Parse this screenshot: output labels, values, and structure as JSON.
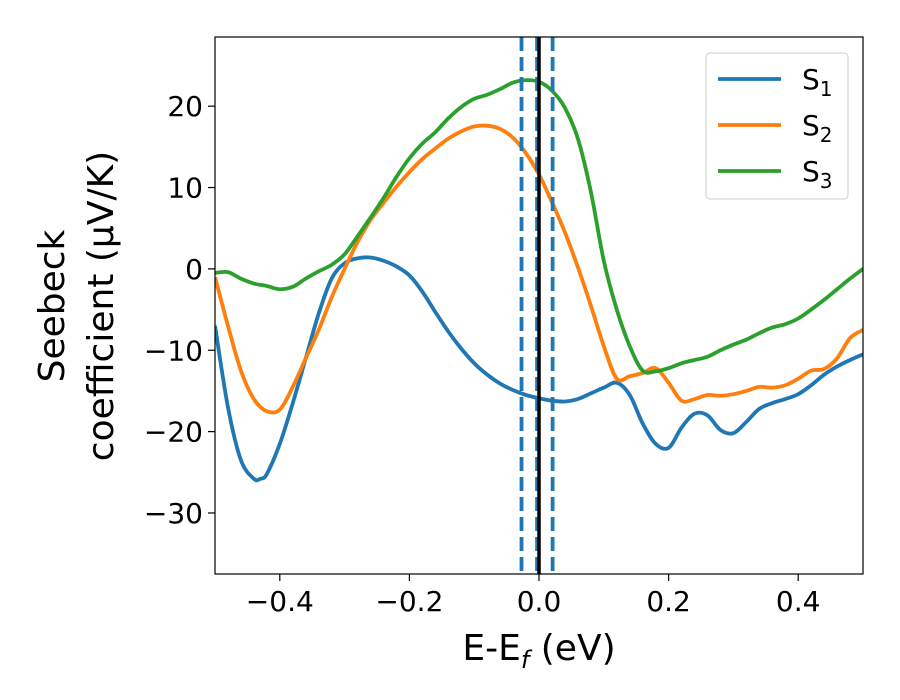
{
  "chart_data": {
    "type": "line",
    "xlabel": "E-E$_f$ (eV)",
    "xlabel_main": "E-E",
    "xlabel_sub": "f",
    "xlabel_tail": " (eV)",
    "ylabel_line1": "Seebeck",
    "ylabel_line2": "coefficient  (μV/K)",
    "xlim": [
      -0.5,
      0.5
    ],
    "ylim": [
      -37.5,
      28.5
    ],
    "xticks": [
      -0.4,
      -0.2,
      0.0,
      0.2,
      0.4
    ],
    "xtick_labels": [
      "−0.4",
      "−0.2",
      "0.0",
      "0.2",
      "0.4"
    ],
    "yticks": [
      20,
      10,
      0,
      -10,
      -20,
      -30
    ],
    "ytick_labels": [
      "20",
      "10",
      "0",
      "−10",
      "−20",
      "−30"
    ],
    "legend_position": "top-right",
    "grid": false,
    "vlines": [
      {
        "x": -0.027,
        "style": "dashed",
        "color": "#1f77b4"
      },
      {
        "x": -0.003,
        "style": "dashed",
        "color": "#1f77b4"
      },
      {
        "x": 0.0,
        "style": "solid",
        "color": "#000000"
      },
      {
        "x": 0.021,
        "style": "dashed",
        "color": "#1f77b4"
      }
    ],
    "series": [
      {
        "name": "S1",
        "label_main": "S",
        "label_sub": "1",
        "color": "#1f77b4",
        "x": [
          -0.5,
          -0.48,
          -0.46,
          -0.44,
          -0.43,
          -0.42,
          -0.4,
          -0.38,
          -0.36,
          -0.34,
          -0.32,
          -0.3,
          -0.28,
          -0.26,
          -0.24,
          -0.22,
          -0.2,
          -0.18,
          -0.16,
          -0.14,
          -0.12,
          -0.1,
          -0.08,
          -0.06,
          -0.04,
          -0.02,
          0.0,
          0.02,
          0.04,
          0.06,
          0.08,
          0.1,
          0.12,
          0.14,
          0.16,
          0.18,
          0.2,
          0.22,
          0.24,
          0.26,
          0.28,
          0.3,
          0.32,
          0.34,
          0.36,
          0.38,
          0.4,
          0.42,
          0.44,
          0.46,
          0.48,
          0.5
        ],
        "y": [
          -7,
          -17,
          -23.5,
          -25.8,
          -25.8,
          -25.2,
          -21.5,
          -16.5,
          -11,
          -5.5,
          -1.2,
          0.7,
          1.3,
          1.4,
          1.0,
          0.3,
          -0.8,
          -2.8,
          -5.3,
          -7.7,
          -9.8,
          -11.6,
          -13,
          -14.1,
          -14.9,
          -15.5,
          -15.9,
          -16.2,
          -16.3,
          -16.0,
          -15.3,
          -14.6,
          -14.0,
          -15.5,
          -19.0,
          -21.5,
          -22.0,
          -19.5,
          -17.8,
          -18.0,
          -19.8,
          -20.2,
          -18.8,
          -17.2,
          -16.5,
          -16.0,
          -15.4,
          -14.3,
          -13.0,
          -12.0,
          -11.2,
          -10.5
        ]
      },
      {
        "name": "S2",
        "label_main": "S",
        "label_sub": "2",
        "color": "#ff7f0e",
        "x": [
          -0.5,
          -0.48,
          -0.46,
          -0.44,
          -0.42,
          -0.4,
          -0.38,
          -0.36,
          -0.34,
          -0.32,
          -0.3,
          -0.28,
          -0.26,
          -0.24,
          -0.22,
          -0.2,
          -0.18,
          -0.16,
          -0.14,
          -0.12,
          -0.1,
          -0.08,
          -0.06,
          -0.04,
          -0.02,
          0.0,
          0.02,
          0.04,
          0.06,
          0.08,
          0.1,
          0.12,
          0.14,
          0.16,
          0.18,
          0.2,
          0.22,
          0.24,
          0.26,
          0.28,
          0.3,
          0.32,
          0.34,
          0.36,
          0.38,
          0.4,
          0.42,
          0.44,
          0.46,
          0.48,
          0.5
        ],
        "y": [
          -1,
          -7,
          -12.5,
          -16,
          -17.5,
          -17.3,
          -14.5,
          -11,
          -7.5,
          -3.5,
          0,
          3.3,
          6,
          8.1,
          10.1,
          11.9,
          13.5,
          14.8,
          16.0,
          16.9,
          17.5,
          17.6,
          17.2,
          16.1,
          14.2,
          11.6,
          8.2,
          4.5,
          0.2,
          -4.5,
          -9.5,
          -13.5,
          -13.2,
          -12.8,
          -12.2,
          -14,
          -16.2,
          -16.0,
          -15.5,
          -15.6,
          -15.4,
          -15.0,
          -14.5,
          -14.6,
          -14.3,
          -13.5,
          -12.5,
          -12.3,
          -11.0,
          -8.5,
          -7.5
        ]
      },
      {
        "name": "S3",
        "label_main": "S",
        "label_sub": "3",
        "color": "#2ca02c",
        "x": [
          -0.5,
          -0.48,
          -0.46,
          -0.44,
          -0.42,
          -0.4,
          -0.38,
          -0.36,
          -0.34,
          -0.32,
          -0.3,
          -0.28,
          -0.26,
          -0.24,
          -0.22,
          -0.2,
          -0.18,
          -0.16,
          -0.14,
          -0.12,
          -0.1,
          -0.08,
          -0.06,
          -0.04,
          -0.02,
          0.0,
          0.02,
          0.04,
          0.06,
          0.08,
          0.1,
          0.12,
          0.14,
          0.16,
          0.18,
          0.2,
          0.22,
          0.24,
          0.26,
          0.28,
          0.3,
          0.32,
          0.34,
          0.36,
          0.38,
          0.4,
          0.42,
          0.44,
          0.46,
          0.48,
          0.5
        ],
        "y": [
          -0.5,
          -0.4,
          -1.2,
          -1.8,
          -2.1,
          -2.5,
          -2.2,
          -1.2,
          -0.3,
          0.5,
          1.8,
          4.0,
          6.3,
          8.7,
          11.3,
          13.6,
          15.4,
          16.8,
          18.5,
          19.9,
          20.9,
          21.4,
          22.1,
          22.9,
          23.2,
          23.0,
          21.9,
          19.8,
          16.0,
          9.5,
          1.0,
          -5.0,
          -9.5,
          -12.5,
          -12.6,
          -12.2,
          -11.6,
          -11.2,
          -10.8,
          -10.0,
          -9.3,
          -8.7,
          -7.9,
          -7.2,
          -6.8,
          -6.1,
          -5.0,
          -3.8,
          -2.5,
          -1.2,
          0.0
        ]
      }
    ]
  }
}
